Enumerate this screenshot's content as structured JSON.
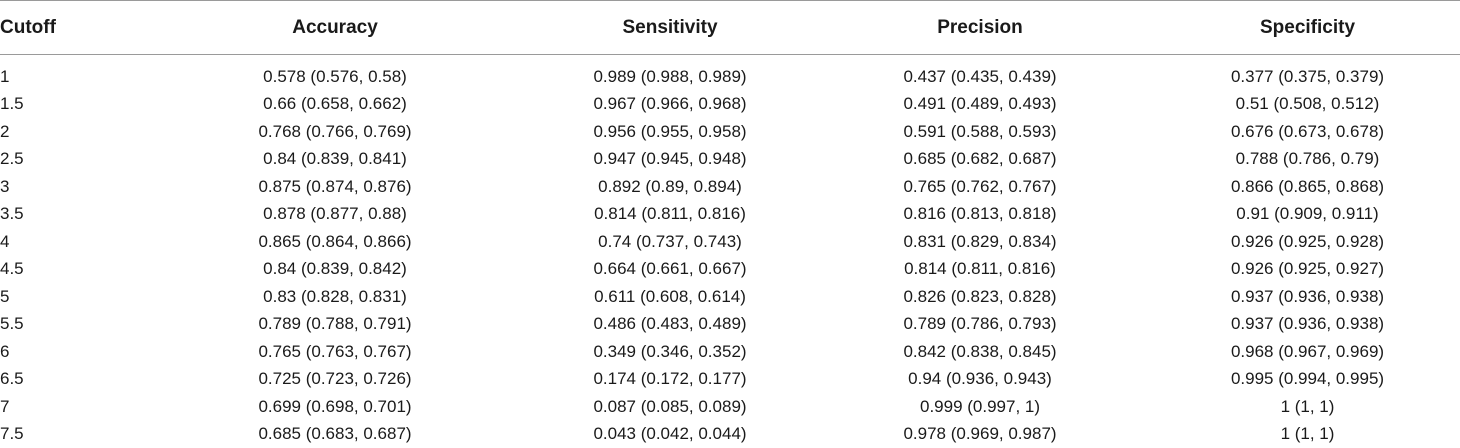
{
  "table": {
    "headers": [
      "Cutoff",
      "Accuracy",
      "Sensitivity",
      "Precision",
      "Specificity"
    ],
    "rows": [
      [
        "1",
        "0.578 (0.576, 0.58)",
        "0.989 (0.988, 0.989)",
        "0.437 (0.435, 0.439)",
        "0.377 (0.375, 0.379)"
      ],
      [
        "1.5",
        "0.66 (0.658, 0.662)",
        "0.967 (0.966, 0.968)",
        "0.491 (0.489, 0.493)",
        "0.51 (0.508, 0.512)"
      ],
      [
        "2",
        "0.768 (0.766, 0.769)",
        "0.956 (0.955, 0.958)",
        "0.591 (0.588, 0.593)",
        "0.676 (0.673, 0.678)"
      ],
      [
        "2.5",
        "0.84 (0.839, 0.841)",
        "0.947 (0.945, 0.948)",
        "0.685 (0.682, 0.687)",
        "0.788 (0.786, 0.79)"
      ],
      [
        "3",
        "0.875 (0.874, 0.876)",
        "0.892 (0.89, 0.894)",
        "0.765 (0.762, 0.767)",
        "0.866 (0.865, 0.868)"
      ],
      [
        "3.5",
        "0.878 (0.877, 0.88)",
        "0.814 (0.811, 0.816)",
        "0.816 (0.813, 0.818)",
        "0.91 (0.909, 0.911)"
      ],
      [
        "4",
        "0.865 (0.864, 0.866)",
        "0.74 (0.737, 0.743)",
        "0.831 (0.829, 0.834)",
        "0.926 (0.925, 0.928)"
      ],
      [
        "4.5",
        "0.84 (0.839, 0.842)",
        "0.664 (0.661, 0.667)",
        "0.814 (0.811, 0.816)",
        "0.926 (0.925, 0.927)"
      ],
      [
        "5",
        "0.83 (0.828, 0.831)",
        "0.611 (0.608, 0.614)",
        "0.826 (0.823, 0.828)",
        "0.937 (0.936, 0.938)"
      ],
      [
        "5.5",
        "0.789 (0.788, 0.791)",
        "0.486 (0.483, 0.489)",
        "0.789 (0.786, 0.793)",
        "0.937 (0.936, 0.938)"
      ],
      [
        "6",
        "0.765 (0.763, 0.767)",
        "0.349 (0.346, 0.352)",
        "0.842 (0.838, 0.845)",
        "0.968 (0.967, 0.969)"
      ],
      [
        "6.5",
        "0.725 (0.723, 0.726)",
        "0.174 (0.172, 0.177)",
        "0.94 (0.936, 0.943)",
        "0.995 (0.994, 0.995)"
      ],
      [
        "7",
        "0.699 (0.698, 0.701)",
        "0.087 (0.085, 0.089)",
        "0.999 (0.997, 1)",
        "1 (1, 1)"
      ],
      [
        "7.5",
        "0.685 (0.683, 0.687)",
        "0.043 (0.042, 0.044)",
        "0.978 (0.969, 0.987)",
        "1 (1, 1)"
      ]
    ]
  }
}
